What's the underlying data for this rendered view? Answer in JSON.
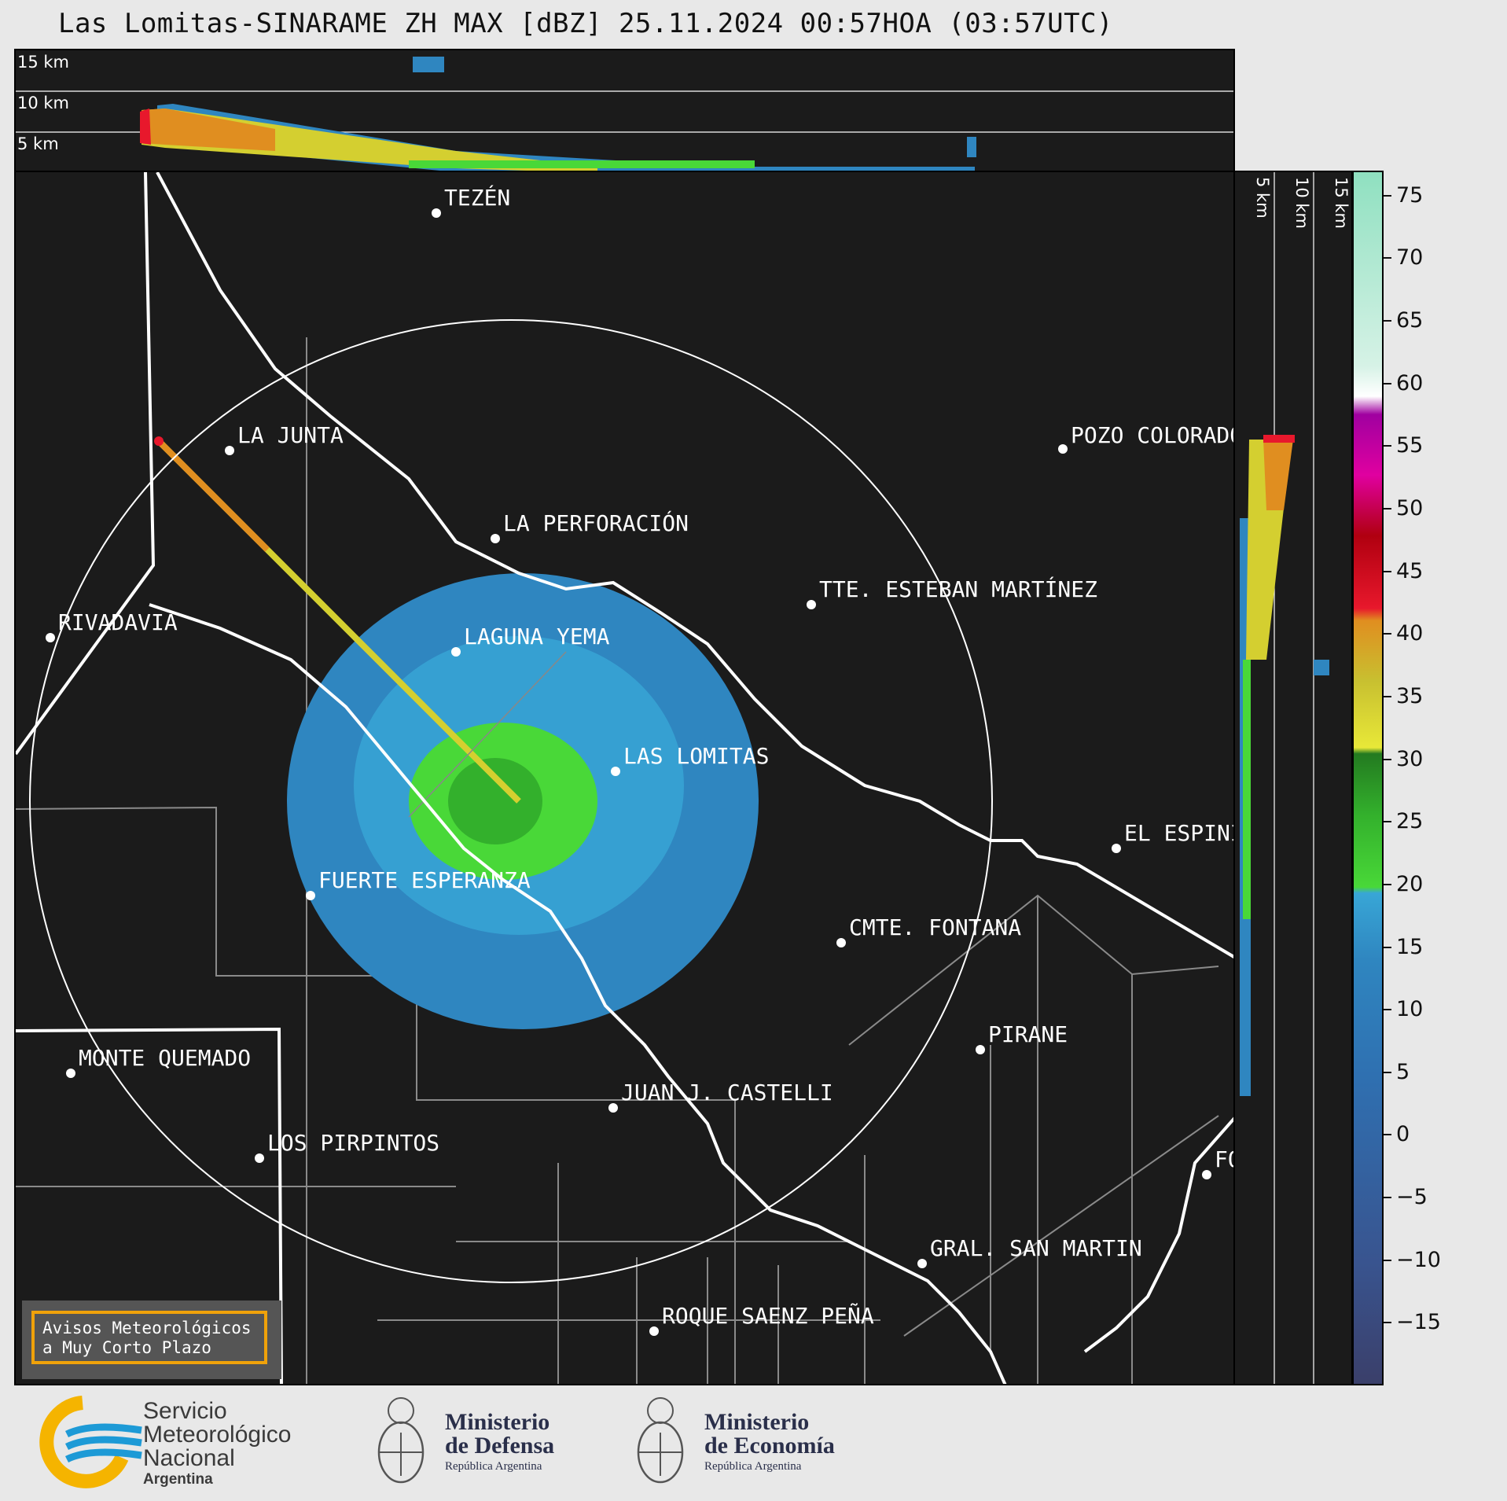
{
  "title": "Las Lomitas-SINARAME ZH MAX [dBZ] 25.11.2024 00:57HOA (03:57UTC)",
  "height_labels": [
    "15 km",
    "10 km",
    "5 km"
  ],
  "cities": [
    {
      "name": "TEZÉN"
    },
    {
      "name": "LA JUNTA"
    },
    {
      "name": "POZO COLORADO"
    },
    {
      "name": "LA PERFORACIÓN"
    },
    {
      "name": "TTE. ESTEBAN MARTÍNEZ"
    },
    {
      "name": "RIVADAVIA"
    },
    {
      "name": "LAGUNA YEMA"
    },
    {
      "name": "LAS LOMITAS"
    },
    {
      "name": "EL ESPINILLO"
    },
    {
      "name": "FUERTE ESPERANZA"
    },
    {
      "name": "CMTE. FONTANA"
    },
    {
      "name": "PIRANE"
    },
    {
      "name": "MONTE QUEMADO"
    },
    {
      "name": "JUAN J. CASTELLI"
    },
    {
      "name": "LOS PIRPINTOS"
    },
    {
      "name": "GRAL. SAN MARTIN"
    },
    {
      "name": "ROQUE SAENZ PEÑA"
    },
    {
      "name": "FORMOSA"
    }
  ],
  "colorbar": {
    "unit": "dBZ",
    "ticks": [
      "75",
      "70",
      "65",
      "60",
      "55",
      "50",
      "45",
      "40",
      "35",
      "30",
      "25",
      "20",
      "15",
      "10",
      "5",
      "0",
      "−5",
      "−10",
      "−15"
    ],
    "min": -20,
    "max": 77
  },
  "notice": {
    "line1": "Avisos Meteorológicos",
    "line2": "a Muy Corto Plazo"
  },
  "footer": {
    "smn_line1": "Servicio",
    "smn_line2": "Meteorológico",
    "smn_line3": "Nacional",
    "smn_line4": "Argentina",
    "defensa_line1": "Ministerio",
    "defensa_line2": "de Defensa",
    "defensa_line3": "República Argentina",
    "economia_line1": "Ministerio",
    "economia_line2": "de Economía",
    "economia_line3": "República Argentina"
  },
  "colors": {
    "background": "#1b1b1b",
    "accent_orange": "#f0a20a",
    "smn_blue": "#1d9ad6",
    "smn_yellow": "#f5b400"
  }
}
